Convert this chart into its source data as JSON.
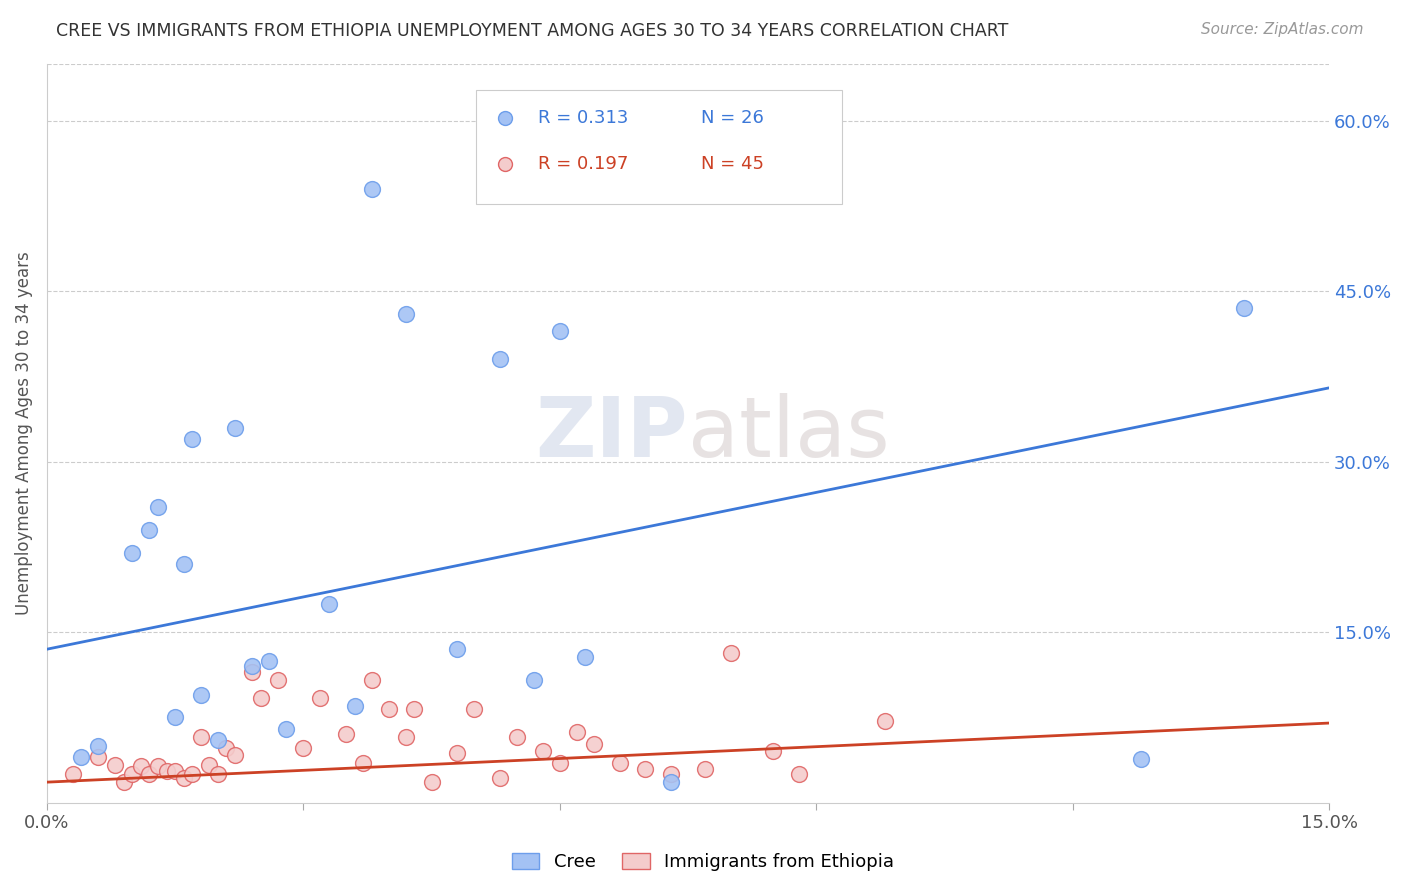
{
  "title": "CREE VS IMMIGRANTS FROM ETHIOPIA UNEMPLOYMENT AMONG AGES 30 TO 34 YEARS CORRELATION CHART",
  "source": "Source: ZipAtlas.com",
  "ylabel": "Unemployment Among Ages 30 to 34 years",
  "xlim": [
    0.0,
    0.15
  ],
  "ylim": [
    0.0,
    0.65
  ],
  "xticks": [
    0.0,
    0.03,
    0.06,
    0.09,
    0.12,
    0.15
  ],
  "xticklabels": [
    "0.0%",
    "",
    "",
    "",
    "",
    "15.0%"
  ],
  "yticks_right": [
    0.15,
    0.3,
    0.45,
    0.6
  ],
  "ytick_labels_right": [
    "15.0%",
    "30.0%",
    "45.0%",
    "60.0%"
  ],
  "cree_color": "#a4c2f4",
  "cree_edge_color": "#6d9eeb",
  "ethiopia_color": "#f4cccc",
  "ethiopia_edge_color": "#e06666",
  "line_cree_color": "#3c78d8",
  "line_ethiopia_color": "#cc4125",
  "watermark_zip": "ZIP",
  "watermark_atlas": "atlas",
  "cree_points_x": [
    0.004,
    0.006,
    0.01,
    0.012,
    0.013,
    0.015,
    0.016,
    0.017,
    0.018,
    0.02,
    0.022,
    0.024,
    0.026,
    0.028,
    0.033,
    0.036,
    0.038,
    0.042,
    0.048,
    0.053,
    0.057,
    0.06,
    0.063,
    0.073,
    0.128,
    0.14
  ],
  "cree_points_y": [
    0.04,
    0.05,
    0.22,
    0.24,
    0.26,
    0.075,
    0.21,
    0.32,
    0.095,
    0.055,
    0.33,
    0.12,
    0.125,
    0.065,
    0.175,
    0.085,
    0.54,
    0.43,
    0.135,
    0.39,
    0.108,
    0.415,
    0.128,
    0.018,
    0.038,
    0.435
  ],
  "ethiopia_points_x": [
    0.003,
    0.006,
    0.008,
    0.009,
    0.01,
    0.011,
    0.012,
    0.013,
    0.014,
    0.015,
    0.016,
    0.017,
    0.018,
    0.019,
    0.02,
    0.021,
    0.022,
    0.024,
    0.025,
    0.027,
    0.03,
    0.032,
    0.035,
    0.037,
    0.038,
    0.04,
    0.042,
    0.043,
    0.045,
    0.048,
    0.05,
    0.053,
    0.055,
    0.058,
    0.06,
    0.062,
    0.064,
    0.067,
    0.07,
    0.073,
    0.077,
    0.08,
    0.085,
    0.088,
    0.098
  ],
  "ethiopia_points_y": [
    0.025,
    0.04,
    0.033,
    0.018,
    0.025,
    0.032,
    0.025,
    0.032,
    0.028,
    0.028,
    0.022,
    0.025,
    0.058,
    0.033,
    0.025,
    0.048,
    0.042,
    0.115,
    0.092,
    0.108,
    0.048,
    0.092,
    0.06,
    0.035,
    0.108,
    0.082,
    0.058,
    0.082,
    0.018,
    0.044,
    0.082,
    0.022,
    0.058,
    0.045,
    0.035,
    0.062,
    0.052,
    0.035,
    0.03,
    0.025,
    0.03,
    0.132,
    0.045,
    0.025,
    0.072
  ],
  "cree_line_x": [
    0.0,
    0.15
  ],
  "cree_line_y": [
    0.135,
    0.365
  ],
  "ethiopia_line_x": [
    0.0,
    0.15
  ],
  "ethiopia_line_y": [
    0.018,
    0.07
  ],
  "bg_color": "#ffffff",
  "grid_color": "#cccccc",
  "title_color": "#333333",
  "right_axis_color": "#3c78d8"
}
